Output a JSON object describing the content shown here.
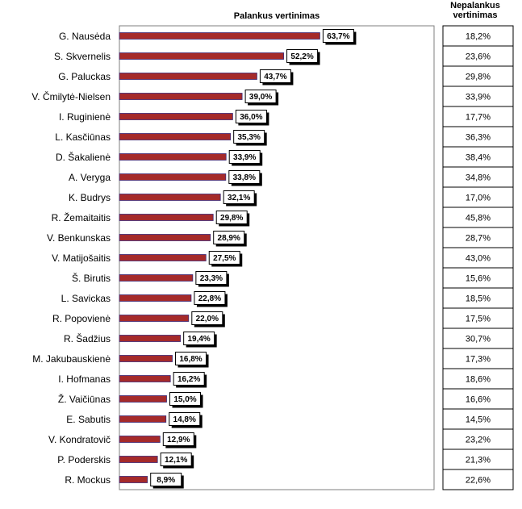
{
  "chart_data": {
    "type": "bar",
    "orientation": "horizontal",
    "title": "Palankus vertinimas",
    "secondary_column_title": "Nepalankus vertinimas",
    "bar_color": "#a52a2a",
    "xlim": [
      0,
      100
    ],
    "grid": false,
    "categories": [
      "G. Nausėda",
      "S. Skvernelis",
      "G. Paluckas",
      "V. Čmilytė-Nielsen",
      "I. Ruginienė",
      "L. Kasčiūnas",
      "D. Šakalienė",
      "A. Veryga",
      "K. Budrys",
      "R. Žemaitaitis",
      "V. Benkunskas",
      "V. Matijošaitis",
      "Š. Birutis",
      "L. Savickas",
      "R. Popovienė",
      "R. Šadžius",
      "M. Jakubauskienė",
      "I. Hofmanas",
      "Ž. Vaičiūnas",
      "E. Sabutis",
      "V. Kondratovič",
      "P. Poderskis",
      "R. Mockus"
    ],
    "values": [
      63.7,
      52.2,
      43.7,
      39.0,
      36.0,
      35.3,
      33.9,
      33.8,
      32.1,
      29.8,
      28.9,
      27.5,
      23.3,
      22.8,
      22.0,
      19.4,
      16.8,
      16.2,
      15.0,
      14.8,
      12.9,
      12.1,
      8.9
    ],
    "value_labels": [
      "63,7%",
      "52,2%",
      "43,7%",
      "39,0%",
      "36,0%",
      "35,3%",
      "33,9%",
      "33,8%",
      "32,1%",
      "29,8%",
      "28,9%",
      "27,5%",
      "23,3%",
      "22,8%",
      "22,0%",
      "19,4%",
      "16,8%",
      "16,2%",
      "15,0%",
      "14,8%",
      "12,9%",
      "12,1%",
      "8,9%"
    ],
    "unfavorable_labels": [
      "18,2%",
      "23,6%",
      "29,8%",
      "33,9%",
      "17,7%",
      "36,3%",
      "38,4%",
      "34,8%",
      "17,0%",
      "45,8%",
      "28,7%",
      "43,0%",
      "15,6%",
      "18,5%",
      "17,5%",
      "30,7%",
      "17,3%",
      "18,6%",
      "16,6%",
      "14,5%",
      "23,2%",
      "21,3%",
      "22,6%"
    ]
  }
}
